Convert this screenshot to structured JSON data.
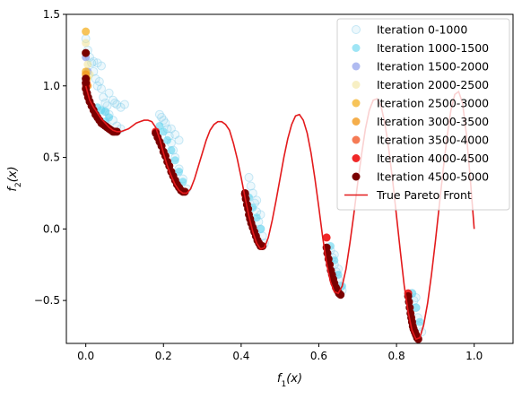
{
  "chart_data": {
    "type": "scatter",
    "title": "",
    "xlabel": "f_1(x)",
    "ylabel": "f_2(x)",
    "xlim": [
      -0.05,
      1.1
    ],
    "ylim": [
      -0.8,
      1.5
    ],
    "x_ticks": [
      0.0,
      0.2,
      0.4,
      0.6,
      0.8,
      1.0
    ],
    "x_tick_labels": [
      "0.0",
      "0.2",
      "0.4",
      "0.6",
      "0.8",
      "1.0"
    ],
    "y_ticks": [
      -0.5,
      0.0,
      0.5,
      1.0,
      1.5
    ],
    "y_tick_labels": [
      "−0.5",
      "0.0",
      "0.5",
      "1.0",
      "1.5"
    ],
    "grid": false,
    "legend_position": "top-right",
    "series": [
      {
        "name": "Iteration 0-1000",
        "color": "#87ceeb",
        "kind": "scatter",
        "filled": false,
        "alpha": 0.3,
        "points": [
          [
            0.0,
            1.33
          ],
          [
            0.005,
            1.25
          ],
          [
            0.01,
            1.2
          ],
          [
            0.015,
            1.16
          ],
          [
            0.02,
            1.17
          ],
          [
            0.03,
            1.16
          ],
          [
            0.04,
            1.14
          ],
          [
            0.02,
            1.1
          ],
          [
            0.025,
            1.05
          ],
          [
            0.03,
            1.0
          ],
          [
            0.035,
            1.03
          ],
          [
            0.04,
            0.98
          ],
          [
            0.045,
            0.92
          ],
          [
            0.05,
            0.88
          ],
          [
            0.055,
            0.86
          ],
          [
            0.06,
            0.95
          ],
          [
            0.07,
            0.9
          ],
          [
            0.075,
            0.88
          ],
          [
            0.08,
            0.87
          ],
          [
            0.09,
            0.85
          ],
          [
            0.1,
            0.87
          ],
          [
            0.05,
            0.82
          ],
          [
            0.06,
            0.8
          ],
          [
            0.07,
            0.76
          ],
          [
            0.08,
            0.72
          ],
          [
            0.09,
            0.7
          ],
          [
            0.19,
            0.8
          ],
          [
            0.195,
            0.78
          ],
          [
            0.2,
            0.76
          ],
          [
            0.205,
            0.74
          ],
          [
            0.21,
            0.7
          ],
          [
            0.215,
            0.65
          ],
          [
            0.22,
            0.6
          ],
          [
            0.225,
            0.55
          ],
          [
            0.23,
            0.5
          ],
          [
            0.24,
            0.42
          ],
          [
            0.25,
            0.35
          ],
          [
            0.26,
            0.28
          ],
          [
            0.22,
            0.7
          ],
          [
            0.23,
            0.66
          ],
          [
            0.24,
            0.62
          ],
          [
            0.42,
            0.36
          ],
          [
            0.425,
            0.3
          ],
          [
            0.43,
            0.25
          ],
          [
            0.435,
            0.18
          ],
          [
            0.44,
            0.12
          ],
          [
            0.445,
            0.05
          ],
          [
            0.45,
            0.0
          ],
          [
            0.455,
            -0.05
          ],
          [
            0.46,
            -0.1
          ],
          [
            0.44,
            0.2
          ],
          [
            0.45,
            0.1
          ],
          [
            0.63,
            -0.15
          ],
          [
            0.635,
            -0.2
          ],
          [
            0.64,
            -0.25
          ],
          [
            0.645,
            -0.3
          ],
          [
            0.65,
            -0.35
          ],
          [
            0.655,
            -0.4
          ],
          [
            0.66,
            -0.43
          ],
          [
            0.64,
            -0.18
          ],
          [
            0.65,
            -0.28
          ],
          [
            0.84,
            -0.45
          ],
          [
            0.845,
            -0.5
          ],
          [
            0.85,
            -0.55
          ],
          [
            0.855,
            -0.62
          ],
          [
            0.86,
            -0.68
          ],
          [
            0.865,
            -0.72
          ],
          [
            0.85,
            -0.48
          ]
        ]
      },
      {
        "name": "Iteration 1000-1500",
        "color": "#5fd3ef",
        "kind": "scatter",
        "filled": true,
        "alpha": 0.6,
        "points": [
          [
            0.03,
            0.85
          ],
          [
            0.04,
            0.83
          ],
          [
            0.05,
            0.82
          ],
          [
            0.06,
            0.78
          ],
          [
            0.05,
            0.75
          ],
          [
            0.19,
            0.72
          ],
          [
            0.2,
            0.68
          ],
          [
            0.21,
            0.62
          ],
          [
            0.22,
            0.55
          ],
          [
            0.23,
            0.48
          ],
          [
            0.24,
            0.4
          ],
          [
            0.25,
            0.33
          ],
          [
            0.42,
            0.22
          ],
          [
            0.43,
            0.15
          ],
          [
            0.44,
            0.08
          ],
          [
            0.45,
            0.0
          ],
          [
            0.63,
            -0.12
          ],
          [
            0.64,
            -0.22
          ],
          [
            0.65,
            -0.32
          ],
          [
            0.66,
            -0.4
          ],
          [
            0.84,
            -0.45
          ],
          [
            0.85,
            -0.55
          ],
          [
            0.86,
            -0.65
          ]
        ]
      },
      {
        "name": "Iteration 1500-2000",
        "color": "#7b8ee8",
        "kind": "scatter",
        "filled": true,
        "alpha": 0.6,
        "points": [
          [
            0.0,
            1.2
          ],
          [
            0.005,
            1.1
          ]
        ]
      },
      {
        "name": "Iteration 2000-2500",
        "color": "#f0e08a",
        "kind": "scatter",
        "filled": true,
        "alpha": 0.5,
        "points": [
          [
            0.0,
            1.3
          ],
          [
            0.005,
            1.15
          ],
          [
            0.01,
            1.08
          ]
        ]
      },
      {
        "name": "Iteration 2500-3000",
        "color": "#f5b530",
        "kind": "scatter",
        "filled": true,
        "alpha": 0.8,
        "points": [
          [
            0.0,
            1.38
          ],
          [
            0.0,
            1.1
          ],
          [
            0.003,
            1.05
          ]
        ]
      },
      {
        "name": "Iteration 3000-3500",
        "color": "#f39a1e",
        "kind": "scatter",
        "filled": true,
        "alpha": 0.8,
        "points": [
          [
            0.0,
            1.08
          ],
          [
            0.005,
            1.0
          ]
        ]
      },
      {
        "name": "Iteration 3500-4000",
        "color": "#f25a2a",
        "kind": "scatter",
        "filled": true,
        "alpha": 0.8,
        "points": [
          [
            0.002,
            1.02
          ]
        ]
      },
      {
        "name": "Iteration 4000-4500",
        "color": "#ee1111",
        "kind": "scatter",
        "filled": true,
        "alpha": 0.9,
        "points": [
          [
            0.001,
            1.0
          ],
          [
            0.18,
            0.68
          ],
          [
            0.41,
            0.24
          ],
          [
            0.62,
            -0.06
          ],
          [
            0.83,
            -0.45
          ]
        ]
      },
      {
        "name": "Iteration 4500-5000",
        "color": "#7a0000",
        "kind": "scatter",
        "filled": true,
        "alpha": 1.0,
        "points": [
          [
            0.0,
            1.23
          ],
          [
            0.0,
            1.05
          ],
          [
            0.0,
            1.02
          ],
          [
            0.0,
            0.98
          ],
          [
            0.003,
            0.95
          ],
          [
            0.006,
            0.92
          ],
          [
            0.01,
            0.89
          ],
          [
            0.015,
            0.86
          ],
          [
            0.02,
            0.83
          ],
          [
            0.025,
            0.8
          ],
          [
            0.03,
            0.78
          ],
          [
            0.035,
            0.76
          ],
          [
            0.04,
            0.74
          ],
          [
            0.045,
            0.73
          ],
          [
            0.05,
            0.72
          ],
          [
            0.055,
            0.71
          ],
          [
            0.06,
            0.7
          ],
          [
            0.065,
            0.69
          ],
          [
            0.07,
            0.68
          ],
          [
            0.075,
            0.68
          ],
          [
            0.08,
            0.68
          ],
          [
            0.18,
            0.67
          ],
          [
            0.185,
            0.64
          ],
          [
            0.19,
            0.61
          ],
          [
            0.195,
            0.58
          ],
          [
            0.2,
            0.54
          ],
          [
            0.205,
            0.51
          ],
          [
            0.21,
            0.47
          ],
          [
            0.215,
            0.44
          ],
          [
            0.22,
            0.4
          ],
          [
            0.225,
            0.37
          ],
          [
            0.23,
            0.34
          ],
          [
            0.235,
            0.31
          ],
          [
            0.24,
            0.29
          ],
          [
            0.245,
            0.27
          ],
          [
            0.25,
            0.26
          ],
          [
            0.255,
            0.26
          ],
          [
            0.41,
            0.25
          ],
          [
            0.412,
            0.21
          ],
          [
            0.415,
            0.17
          ],
          [
            0.418,
            0.14
          ],
          [
            0.42,
            0.1
          ],
          [
            0.423,
            0.07
          ],
          [
            0.426,
            0.04
          ],
          [
            0.43,
            0.01
          ],
          [
            0.434,
            -0.02
          ],
          [
            0.438,
            -0.05
          ],
          [
            0.442,
            -0.08
          ],
          [
            0.446,
            -0.1
          ],
          [
            0.45,
            -0.12
          ],
          [
            0.455,
            -0.12
          ],
          [
            0.62,
            -0.13
          ],
          [
            0.622,
            -0.17
          ],
          [
            0.625,
            -0.21
          ],
          [
            0.628,
            -0.25
          ],
          [
            0.631,
            -0.29
          ],
          [
            0.634,
            -0.32
          ],
          [
            0.637,
            -0.35
          ],
          [
            0.64,
            -0.38
          ],
          [
            0.644,
            -0.41
          ],
          [
            0.648,
            -0.43
          ],
          [
            0.652,
            -0.45
          ],
          [
            0.656,
            -0.46
          ],
          [
            0.83,
            -0.47
          ],
          [
            0.832,
            -0.51
          ],
          [
            0.834,
            -0.55
          ],
          [
            0.836,
            -0.59
          ],
          [
            0.838,
            -0.62
          ],
          [
            0.84,
            -0.65
          ],
          [
            0.842,
            -0.68
          ],
          [
            0.844,
            -0.7
          ],
          [
            0.847,
            -0.72
          ],
          [
            0.85,
            -0.74
          ],
          [
            0.853,
            -0.76
          ],
          [
            0.856,
            -0.77
          ]
        ]
      },
      {
        "name": "True Pareto Front",
        "color": "#e31a1c",
        "kind": "line",
        "points": [
          [
            0.0,
            1.0
          ],
          [
            0.01,
            0.9
          ],
          [
            0.02,
            0.85
          ],
          [
            0.03,
            0.81
          ],
          [
            0.04,
            0.77
          ],
          [
            0.05,
            0.74
          ],
          [
            0.06,
            0.71
          ],
          [
            0.07,
            0.69
          ],
          [
            0.08,
            0.68
          ],
          [
            0.09,
            0.68
          ],
          [
            0.1,
            0.69
          ],
          [
            0.11,
            0.7
          ],
          [
            0.12,
            0.72
          ],
          [
            0.13,
            0.74
          ],
          [
            0.14,
            0.75
          ],
          [
            0.15,
            0.76
          ],
          [
            0.16,
            0.76
          ],
          [
            0.17,
            0.75
          ],
          [
            0.18,
            0.71
          ],
          [
            0.19,
            0.63
          ],
          [
            0.2,
            0.53
          ],
          [
            0.21,
            0.44
          ],
          [
            0.22,
            0.37
          ],
          [
            0.23,
            0.31
          ],
          [
            0.24,
            0.27
          ],
          [
            0.25,
            0.25
          ],
          [
            0.26,
            0.25
          ],
          [
            0.27,
            0.28
          ],
          [
            0.28,
            0.35
          ],
          [
            0.29,
            0.44
          ],
          [
            0.3,
            0.53
          ],
          [
            0.31,
            0.62
          ],
          [
            0.32,
            0.69
          ],
          [
            0.33,
            0.73
          ],
          [
            0.34,
            0.75
          ],
          [
            0.35,
            0.75
          ],
          [
            0.36,
            0.73
          ],
          [
            0.37,
            0.69
          ],
          [
            0.38,
            0.6
          ],
          [
            0.39,
            0.49
          ],
          [
            0.4,
            0.36
          ],
          [
            0.41,
            0.22
          ],
          [
            0.42,
            0.09
          ],
          [
            0.43,
            -0.02
          ],
          [
            0.44,
            -0.1
          ],
          [
            0.45,
            -0.14
          ],
          [
            0.46,
            -0.13
          ],
          [
            0.47,
            -0.06
          ],
          [
            0.48,
            0.06
          ],
          [
            0.49,
            0.2
          ],
          [
            0.5,
            0.35
          ],
          [
            0.51,
            0.5
          ],
          [
            0.52,
            0.63
          ],
          [
            0.53,
            0.73
          ],
          [
            0.54,
            0.79
          ],
          [
            0.55,
            0.8
          ],
          [
            0.56,
            0.76
          ],
          [
            0.57,
            0.67
          ],
          [
            0.58,
            0.53
          ],
          [
            0.59,
            0.35
          ],
          [
            0.6,
            0.15
          ],
          [
            0.61,
            -0.06
          ],
          [
            0.62,
            -0.24
          ],
          [
            0.63,
            -0.37
          ],
          [
            0.64,
            -0.44
          ],
          [
            0.65,
            -0.45
          ],
          [
            0.66,
            -0.4
          ],
          [
            0.67,
            -0.28
          ],
          [
            0.68,
            -0.1
          ],
          [
            0.69,
            0.1
          ],
          [
            0.7,
            0.32
          ],
          [
            0.71,
            0.52
          ],
          [
            0.72,
            0.7
          ],
          [
            0.73,
            0.83
          ],
          [
            0.74,
            0.9
          ],
          [
            0.75,
            0.91
          ],
          [
            0.76,
            0.86
          ],
          [
            0.77,
            0.74
          ],
          [
            0.78,
            0.56
          ],
          [
            0.79,
            0.34
          ],
          [
            0.8,
            0.09
          ],
          [
            0.81,
            -0.16
          ],
          [
            0.82,
            -0.4
          ],
          [
            0.83,
            -0.58
          ],
          [
            0.84,
            -0.71
          ],
          [
            0.85,
            -0.77
          ],
          [
            0.86,
            -0.76
          ],
          [
            0.87,
            -0.67
          ],
          [
            0.88,
            -0.52
          ],
          [
            0.89,
            -0.32
          ],
          [
            0.9,
            -0.09
          ],
          [
            0.91,
            0.16
          ],
          [
            0.92,
            0.41
          ],
          [
            0.93,
            0.64
          ],
          [
            0.94,
            0.83
          ],
          [
            0.95,
            0.94
          ],
          [
            0.96,
            0.96
          ],
          [
            0.97,
            0.88
          ],
          [
            0.98,
            0.66
          ],
          [
            0.99,
            0.35
          ],
          [
            1.0,
            0.0
          ]
        ]
      }
    ]
  }
}
